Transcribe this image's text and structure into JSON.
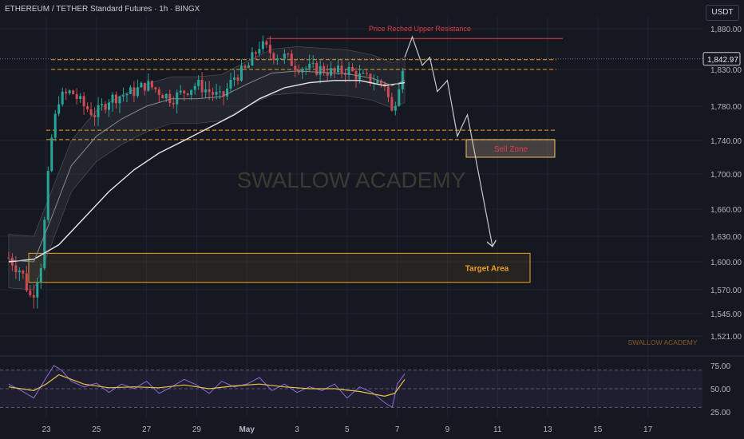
{
  "header": {
    "title": "ETHEREUM / TETHER Standard Futures · 1h · BINGX",
    "currency": "USDT"
  },
  "watermark": "SWALLOW ACADEMY",
  "watermark_small": "SWALLOW ACADEMY",
  "colors": {
    "bg": "#151821",
    "orange": "#f0a020",
    "red": "#e03c4a",
    "bull": "#26a69a",
    "bear": "#d04a55",
    "rsi": "#8c6ad8",
    "rsi_ma": "#e8c34a",
    "ma_slow": "#e6e6e6",
    "ma_fast": "#8a8a8a"
  },
  "chart_data": {
    "type": "candlestick",
    "x_ticks": [
      "23",
      "25",
      "27",
      "29",
      "May",
      "3",
      "5",
      "7",
      "9",
      "11",
      "13",
      "15",
      "17"
    ],
    "y_ticks": [
      1880,
      1830,
      1780,
      1740,
      1700,
      1660,
      1630,
      1600,
      1570,
      1545,
      1521
    ],
    "y_tick_labels": [
      "1,880.00",
      "1,830.00",
      "1,780.00",
      "1,740.00",
      "1,700.00",
      "1,660.00",
      "1,630.00",
      "1,600.00",
      "1,570.00",
      "1,545.00",
      "1,521.00"
    ],
    "last_price": 1842.97,
    "last_price_label": "1,842.97",
    "price_path": [
      [
        21.5,
        1605
      ],
      [
        22.0,
        1590
      ],
      [
        22.4,
        1560
      ],
      [
        22.8,
        1600
      ],
      [
        23.2,
        1740
      ],
      [
        23.5,
        1790
      ],
      [
        24.0,
        1800
      ],
      [
        24.5,
        1780
      ],
      [
        25.0,
        1770
      ],
      [
        25.5,
        1790
      ],
      [
        26.0,
        1795
      ],
      [
        26.5,
        1800
      ],
      [
        27.0,
        1810
      ],
      [
        27.5,
        1800
      ],
      [
        28.0,
        1790
      ],
      [
        28.5,
        1800
      ],
      [
        29.0,
        1810
      ],
      [
        29.5,
        1800
      ],
      [
        30.0,
        1790
      ],
      [
        30.5,
        1820
      ],
      [
        31.0,
        1830
      ],
      [
        31.5,
        1860
      ],
      [
        32.0,
        1850
      ],
      [
        32.5,
        1845
      ],
      [
        33.0,
        1835
      ],
      [
        33.5,
        1830
      ],
      [
        34.0,
        1830
      ],
      [
        34.5,
        1825
      ],
      [
        35.0,
        1830
      ],
      [
        35.5,
        1820
      ],
      [
        36.0,
        1815
      ],
      [
        36.5,
        1810
      ],
      [
        36.8,
        1770
      ],
      [
        37.0,
        1800
      ],
      [
        37.3,
        1850
      ]
    ],
    "moving_average_slow": [
      [
        21.5,
        1600
      ],
      [
        22.5,
        1603
      ],
      [
        23.5,
        1620
      ],
      [
        24.5,
        1650
      ],
      [
        25.5,
        1680
      ],
      [
        26.5,
        1705
      ],
      [
        27.5,
        1725
      ],
      [
        28.5,
        1740
      ],
      [
        29.5,
        1755
      ],
      [
        30.5,
        1770
      ],
      [
        31.5,
        1790
      ],
      [
        32.5,
        1805
      ],
      [
        33.5,
        1812
      ],
      [
        34.5,
        1815
      ],
      [
        35.5,
        1815
      ],
      [
        36.5,
        1808
      ],
      [
        37.3,
        1812
      ]
    ],
    "moving_average_fast": [
      [
        21.5,
        1602
      ],
      [
        22.5,
        1600
      ],
      [
        23.2,
        1650
      ],
      [
        24.0,
        1710
      ],
      [
        25.0,
        1745
      ],
      [
        26.0,
        1765
      ],
      [
        27.0,
        1780
      ],
      [
        28.0,
        1790
      ],
      [
        29.0,
        1790
      ],
      [
        30.0,
        1793
      ],
      [
        31.0,
        1810
      ],
      [
        32.0,
        1825
      ],
      [
        33.0,
        1828
      ],
      [
        34.0,
        1826
      ],
      [
        35.0,
        1824
      ],
      [
        36.0,
        1818
      ],
      [
        36.8,
        1808
      ],
      [
        37.3,
        1815
      ]
    ],
    "annotations": {
      "upper_resistance_label": "Price Reched Upper Resistance",
      "upper_resistance_price": 1868,
      "sell_zone_label": "Sell Zone",
      "sell_zone_range": [
        1720,
        1741
      ],
      "target_area_label": "Target Area",
      "target_area_range": [
        1578,
        1610
      ],
      "dashed_levels": [
        1842,
        1830,
        1752,
        1741
      ],
      "projection_path": [
        [
          37.3,
          1845
        ],
        [
          37.6,
          1870
        ],
        [
          38.0,
          1835
        ],
        [
          38.3,
          1845
        ],
        [
          38.6,
          1800
        ],
        [
          39.0,
          1815
        ],
        [
          39.4,
          1745
        ],
        [
          39.8,
          1770
        ],
        [
          40.8,
          1618
        ]
      ]
    }
  },
  "rsi": {
    "y_tick_labels": [
      "75.00",
      "50.00",
      "25.00"
    ],
    "y_ticks": [
      75,
      50,
      25
    ],
    "upper_band": 70,
    "lower_band": 30,
    "mid": 50,
    "values": [
      [
        21.5,
        55
      ],
      [
        22.0,
        48
      ],
      [
        22.5,
        40
      ],
      [
        23.0,
        62
      ],
      [
        23.3,
        75
      ],
      [
        23.6,
        70
      ],
      [
        24.0,
        58
      ],
      [
        24.5,
        52
      ],
      [
        25.0,
        56
      ],
      [
        25.5,
        46
      ],
      [
        26.0,
        55
      ],
      [
        26.5,
        50
      ],
      [
        27.0,
        58
      ],
      [
        27.5,
        45
      ],
      [
        28.0,
        52
      ],
      [
        28.5,
        60
      ],
      [
        29.0,
        54
      ],
      [
        29.5,
        45
      ],
      [
        30.0,
        58
      ],
      [
        30.5,
        52
      ],
      [
        31.0,
        55
      ],
      [
        31.5,
        62
      ],
      [
        32.0,
        48
      ],
      [
        32.5,
        55
      ],
      [
        33.0,
        46
      ],
      [
        33.5,
        52
      ],
      [
        34.0,
        48
      ],
      [
        34.5,
        55
      ],
      [
        35.0,
        40
      ],
      [
        35.5,
        52
      ],
      [
        36.0,
        46
      ],
      [
        36.5,
        35
      ],
      [
        36.8,
        30
      ],
      [
        37.0,
        55
      ],
      [
        37.3,
        66
      ]
    ],
    "ma_values": [
      [
        21.5,
        52
      ],
      [
        22.5,
        48
      ],
      [
        23.0,
        55
      ],
      [
        23.5,
        65
      ],
      [
        24.0,
        60
      ],
      [
        24.5,
        55
      ],
      [
        25.5,
        51
      ],
      [
        26.5,
        52
      ],
      [
        27.5,
        51
      ],
      [
        28.5,
        54
      ],
      [
        29.5,
        50
      ],
      [
        30.5,
        53
      ],
      [
        31.5,
        55
      ],
      [
        32.5,
        52
      ],
      [
        33.5,
        50
      ],
      [
        34.5,
        50
      ],
      [
        35.5,
        47
      ],
      [
        36.5,
        42
      ],
      [
        36.9,
        45
      ],
      [
        37.3,
        60
      ]
    ]
  }
}
